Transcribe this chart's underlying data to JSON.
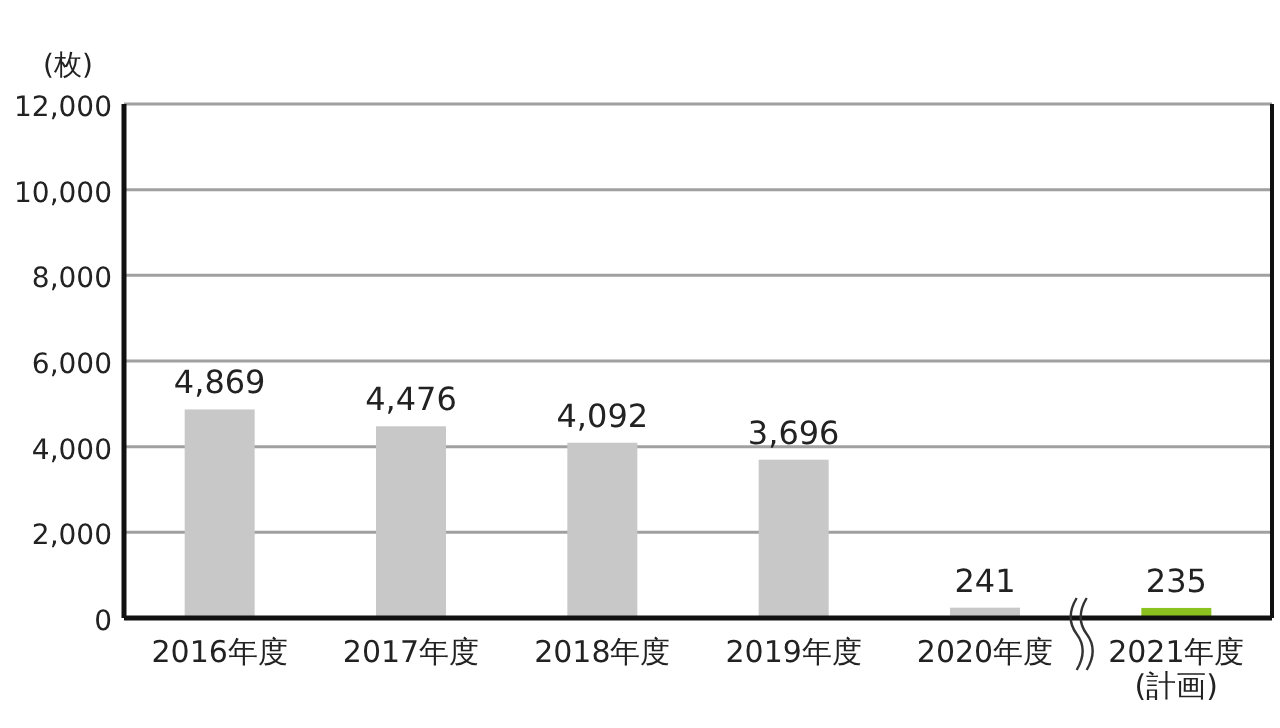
{
  "chart_data": {
    "type": "bar",
    "ylabel": "(枚)",
    "categories": [
      "2016年度",
      "2017年度",
      "2018年度",
      "2019年度",
      "2020年度",
      "2021年度\n(計画)"
    ],
    "values": [
      4869,
      4476,
      4092,
      3696,
      241,
      235
    ],
    "colors": [
      "#c8c8c8",
      "#c8c8c8",
      "#c8c8c8",
      "#c8c8c8",
      "#c8c8c8",
      "#8cc21f"
    ],
    "value_labels": [
      "4,869",
      "4,476",
      "4,092",
      "3,696",
      "241",
      "235"
    ],
    "ylim": [
      0,
      12000
    ],
    "yticks": [
      {
        "value": 0,
        "label": "0"
      },
      {
        "value": 2000,
        "label": "2,000"
      },
      {
        "value": 4000,
        "label": "4,000"
      },
      {
        "value": 6000,
        "label": "6,000"
      },
      {
        "value": 8000,
        "label": "8,000"
      },
      {
        "value": 10000,
        "label": "10,000"
      },
      {
        "value": 12000,
        "label": "12,000"
      }
    ],
    "grid": "y"
  }
}
